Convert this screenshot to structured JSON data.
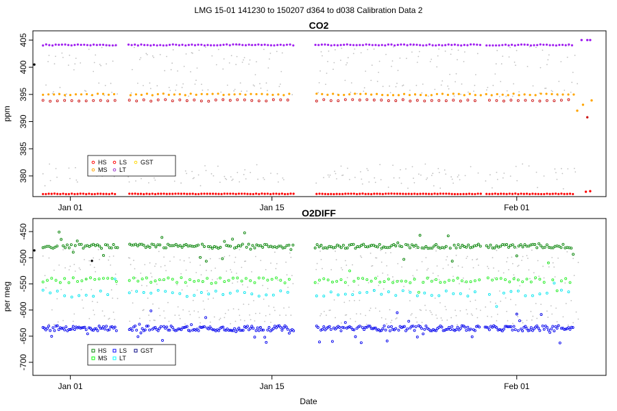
{
  "chart_data": {
    "type": "scatter",
    "main_title": "LMG   15-01    141230 to 150207    d364 to d038   Calibration Data 2",
    "xlabel": "Date",
    "x_axis": {
      "unit": "day since Dec 31",
      "range": [
        -1.6,
        38.2
      ],
      "ticks": [
        {
          "value": 1,
          "label": "Jan 01"
        },
        {
          "value": 15,
          "label": "Jan 15"
        },
        {
          "value": 32,
          "label": "Feb 01"
        }
      ]
    },
    "gaps": [
      [
        4.3,
        5.0
      ],
      [
        16.5,
        18.0
      ],
      [
        29.5,
        29.8
      ]
    ],
    "panels": [
      {
        "title": "CO2",
        "ylabel": "ppm",
        "ylim": [
          376.2,
          406.7
        ],
        "yticks": [
          380,
          385,
          390,
          395,
          400,
          405
        ],
        "legend": {
          "position": "bottom-left",
          "marker": "circle",
          "entries": [
            {
              "label": "HS",
              "color": "#ff0000"
            },
            {
              "label": "MS",
              "color": "#ffa500"
            },
            {
              "label": "LS",
              "color": "#ff0000"
            },
            {
              "label": "LT",
              "color": "#9932cc"
            },
            {
              "label": "GST",
              "color": "#ffd700"
            }
          ]
        },
        "series": [
          {
            "name": "LT",
            "color": "#a020f0",
            "marker": "dot",
            "level": 404.1,
            "spread": 0.1,
            "step": 0.22,
            "jitter": 0
          },
          {
            "name": "MS",
            "color": "#ffa500",
            "marker": "dot",
            "level": 395.0,
            "spread": 0.15,
            "step": 0.38,
            "jitter": 0
          },
          {
            "name": "LS",
            "color": "#cc1111",
            "marker": "ring",
            "level": 393.9,
            "spread": 0.15,
            "step": 0.5,
            "jitter": 0
          },
          {
            "name": "HS",
            "color": "#ff0000",
            "marker": "dot",
            "level": 376.7,
            "spread": 0.05,
            "step": 0.2,
            "jitter": 0
          }
        ],
        "background": {
          "name": "samples",
          "color": "#bfbfbf",
          "levels": [
            380.9,
            379.9,
            378.9,
            395.9,
            396.3,
            399.9,
            401.6,
            402.9
          ],
          "step": 0.45,
          "spread": 1.3
        },
        "extra_points": [
          {
            "x": -1.5,
            "y": 400.5,
            "color": "#000000"
          },
          {
            "x": 36.2,
            "y": 392.0,
            "color": "#ffa500"
          },
          {
            "x": 36.6,
            "y": 393.1,
            "color": "#ffa500"
          },
          {
            "x": 37.2,
            "y": 393.9,
            "color": "#ffa500"
          },
          {
            "x": 36.5,
            "y": 405.0,
            "color": "#a020f0"
          },
          {
            "x": 36.9,
            "y": 405.0,
            "color": "#a020f0"
          },
          {
            "x": 37.1,
            "y": 405.0,
            "color": "#a020f0"
          },
          {
            "x": 36.8,
            "y": 377.1,
            "color": "#ff0000"
          },
          {
            "x": 37.1,
            "y": 377.2,
            "color": "#ff0000"
          },
          {
            "x": 36.9,
            "y": 390.8,
            "color": "#cc1111"
          }
        ]
      },
      {
        "title": "O2DIFF",
        "ylabel": "per meg",
        "ylim": [
          -725,
          -425
        ],
        "yticks": [
          -700,
          -650,
          -600,
          -550,
          -500,
          -450
        ],
        "legend": {
          "position": "bottom-left",
          "marker": "square",
          "entries": [
            {
              "label": "HS",
              "color": "#008000"
            },
            {
              "label": "MS",
              "color": "#00ff00"
            },
            {
              "label": "LS",
              "color": "#0000ff"
            },
            {
              "label": "LT",
              "color": "#00ffff"
            },
            {
              "label": "GST",
              "color": "#000080"
            }
          ]
        },
        "series": [
          {
            "name": "HS",
            "color": "#008000",
            "marker": "ring",
            "level": -478,
            "spread": 4,
            "step": 0.14,
            "jitter": 28
          },
          {
            "name": "MS",
            "color": "#22ee22",
            "marker": "ring",
            "level": -543,
            "spread": 5,
            "step": 0.3,
            "jitter": 30
          },
          {
            "name": "LT",
            "color": "#00e5ee",
            "marker": "ring",
            "level": -568,
            "spread": 6,
            "step": 0.5,
            "jitter": 22
          },
          {
            "name": "LS",
            "color": "#0000ee",
            "marker": "ring",
            "level": -635,
            "spread": 5,
            "step": 0.1,
            "jitter": 32
          }
        ],
        "background": {
          "name": "samples",
          "color": "#bfbfbf",
          "levels": [
            -495,
            -510,
            -525,
            -550,
            -590,
            -610,
            -620
          ],
          "step": 0.35,
          "spread": 14
        },
        "extra_points": [
          {
            "x": -1.5,
            "y": -486,
            "color": "#000000"
          },
          {
            "x": 2.5,
            "y": -506,
            "color": "#000000"
          }
        ]
      }
    ]
  }
}
